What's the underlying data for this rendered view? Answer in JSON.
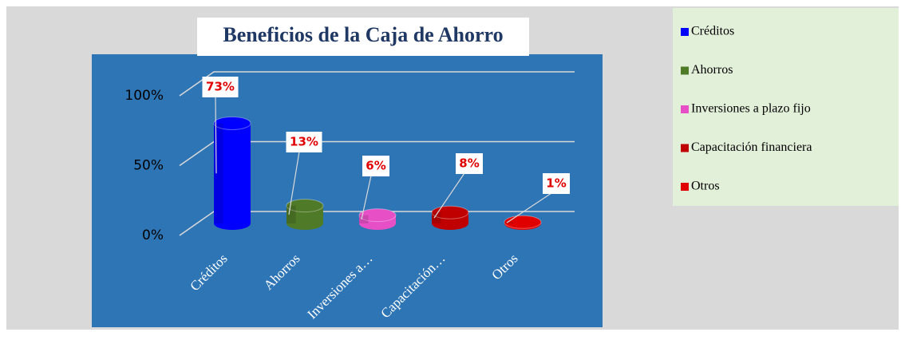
{
  "chart_data": {
    "type": "bar3d",
    "title": "Beneficios de la Caja de Ahorro",
    "categories": [
      "Créditos",
      "Ahorros",
      "Inversiones a plazo fijo",
      "Capacitación financiera",
      "Otros"
    ],
    "x_tick_labels": [
      "Créditos",
      "Ahorros",
      "Inversiones a…",
      "Capacitación…",
      "Otros"
    ],
    "values": [
      73,
      13,
      6,
      8,
      1
    ],
    "value_labels": [
      "73%",
      "13%",
      "6%",
      "8%",
      "1%"
    ],
    "colors": [
      "#0000ff",
      "#4f7a28",
      "#e64fc6",
      "#c00000",
      "#e00000"
    ],
    "ylim": [
      0,
      100
    ],
    "yticks": [
      {
        "value": 0,
        "label": "0%"
      },
      {
        "value": 50,
        "label": "50%"
      },
      {
        "value": 100,
        "label": "100%"
      }
    ],
    "grid": true,
    "legend": "right"
  }
}
